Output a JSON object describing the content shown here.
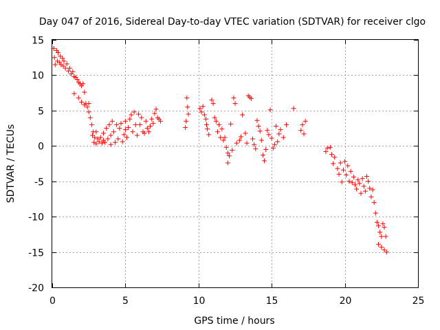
{
  "chart_data": {
    "type": "scatter",
    "title": "Day 047 of 2016, Sidereal Day-to-day VTEC variation (SDTVAR) for receiver clgo",
    "xlabel": "GPS time / hours",
    "ylabel": "SDTVAR / TECUs",
    "xlim": [
      0,
      25
    ],
    "ylim": [
      -20,
      15
    ],
    "xticks": [
      0,
      5,
      10,
      15,
      20,
      25
    ],
    "yticks": [
      -20,
      -15,
      -10,
      -5,
      0,
      5,
      10,
      15
    ],
    "grid": true,
    "marker": "+",
    "series_color": "#ff0000",
    "series": [
      {
        "name": "SDTVAR",
        "points": [
          [
            0.1,
            13.8
          ],
          [
            0.15,
            12.5
          ],
          [
            0.2,
            11.5
          ],
          [
            0.3,
            13.5
          ],
          [
            0.35,
            12.0
          ],
          [
            0.4,
            13.2
          ],
          [
            0.5,
            11.8
          ],
          [
            0.55,
            12.7
          ],
          [
            0.6,
            11.5
          ],
          [
            0.7,
            12.4
          ],
          [
            0.75,
            11.3
          ],
          [
            0.8,
            12.0
          ],
          [
            0.9,
            11.0
          ],
          [
            1.0,
            11.6
          ],
          [
            1.1,
            10.6
          ],
          [
            1.2,
            11.0
          ],
          [
            1.3,
            10.2
          ],
          [
            1.4,
            10.5
          ],
          [
            1.5,
            9.8
          ],
          [
            1.5,
            7.4
          ],
          [
            1.6,
            9.7
          ],
          [
            1.7,
            9.4
          ],
          [
            1.8,
            9.0
          ],
          [
            1.8,
            6.8
          ],
          [
            1.9,
            8.8
          ],
          [
            2.0,
            8.5
          ],
          [
            2.0,
            6.2
          ],
          [
            2.1,
            8.8
          ],
          [
            2.2,
            7.6
          ],
          [
            2.2,
            5.8
          ],
          [
            2.3,
            6.0
          ],
          [
            2.4,
            5.5
          ],
          [
            2.5,
            6.0
          ],
          [
            2.5,
            4.8
          ],
          [
            2.6,
            4.0
          ],
          [
            2.7,
            3.0
          ],
          [
            2.75,
            1.5
          ],
          [
            2.8,
            2.0
          ],
          [
            2.85,
            0.5
          ],
          [
            2.9,
            1.2
          ],
          [
            3.0,
            0.3
          ],
          [
            3.0,
            2.0
          ],
          [
            3.1,
            1.0
          ],
          [
            3.2,
            0.6
          ],
          [
            3.3,
            1.2
          ],
          [
            3.4,
            0.4
          ],
          [
            3.5,
            1.8
          ],
          [
            3.5,
            0.8
          ],
          [
            3.6,
            0.5
          ],
          [
            3.7,
            2.5
          ],
          [
            3.8,
            1.0
          ],
          [
            3.9,
            3.0
          ],
          [
            4.0,
            1.5
          ],
          [
            4.0,
            0.2
          ],
          [
            4.1,
            3.5
          ],
          [
            4.2,
            2.0
          ],
          [
            4.3,
            0.5
          ],
          [
            4.4,
            3.0
          ],
          [
            4.5,
            1.0
          ],
          [
            4.6,
            2.5
          ],
          [
            4.7,
            3.2
          ],
          [
            4.8,
            0.6
          ],
          [
            4.9,
            1.6
          ],
          [
            5.0,
            3.5
          ],
          [
            5.0,
            2.3
          ],
          [
            5.1,
            1.2
          ],
          [
            5.2,
            2.6
          ],
          [
            5.3,
            3.8
          ],
          [
            5.4,
            4.4
          ],
          [
            5.5,
            2.0
          ],
          [
            5.6,
            4.8
          ],
          [
            5.7,
            3.0
          ],
          [
            5.8,
            1.5
          ],
          [
            5.9,
            4.5
          ],
          [
            6.0,
            3.0
          ],
          [
            6.1,
            4.0
          ],
          [
            6.2,
            2.0
          ],
          [
            6.3,
            1.8
          ],
          [
            6.4,
            3.5
          ],
          [
            6.5,
            2.5
          ],
          [
            6.6,
            2.0
          ],
          [
            6.7,
            2.8
          ],
          [
            6.8,
            3.8
          ],
          [
            6.9,
            3.2
          ],
          [
            7.0,
            4.6
          ],
          [
            7.1,
            5.2
          ],
          [
            7.2,
            4.0
          ],
          [
            7.3,
            3.8
          ],
          [
            7.4,
            3.5
          ],
          [
            9.1,
            2.6
          ],
          [
            9.15,
            3.5
          ],
          [
            9.2,
            6.8
          ],
          [
            9.25,
            5.5
          ],
          [
            9.3,
            4.5
          ],
          [
            10.1,
            5.3
          ],
          [
            10.2,
            4.8
          ],
          [
            10.3,
            5.6
          ],
          [
            10.4,
            4.4
          ],
          [
            10.5,
            3.8
          ],
          [
            10.55,
            3.0
          ],
          [
            10.6,
            2.4
          ],
          [
            10.7,
            1.6
          ],
          [
            10.9,
            6.5
          ],
          [
            11.0,
            6.0
          ],
          [
            11.1,
            4.0
          ],
          [
            11.2,
            3.5
          ],
          [
            11.3,
            2.0
          ],
          [
            11.4,
            3.0
          ],
          [
            11.5,
            1.2
          ],
          [
            11.6,
            2.4
          ],
          [
            11.7,
            0.8
          ],
          [
            11.8,
            1.2
          ],
          [
            11.9,
            -0.2
          ],
          [
            12.0,
            -1.0
          ],
          [
            12.0,
            -2.4
          ],
          [
            12.1,
            -1.4
          ],
          [
            12.2,
            3.1
          ],
          [
            12.3,
            -0.6
          ],
          [
            12.4,
            6.8
          ],
          [
            12.5,
            6.0
          ],
          [
            12.6,
            0.4
          ],
          [
            12.8,
            0.8
          ],
          [
            12.9,
            1.3
          ],
          [
            13.0,
            4.4
          ],
          [
            13.2,
            1.8
          ],
          [
            13.3,
            0.4
          ],
          [
            13.4,
            7.1
          ],
          [
            13.5,
            6.9
          ],
          [
            13.6,
            6.7
          ],
          [
            13.7,
            1.0
          ],
          [
            13.8,
            0.2
          ],
          [
            13.9,
            -0.4
          ],
          [
            14.0,
            3.6
          ],
          [
            14.1,
            2.8
          ],
          [
            14.2,
            2.1
          ],
          [
            14.3,
            0.8
          ],
          [
            14.4,
            -1.3
          ],
          [
            14.5,
            -2.1
          ],
          [
            14.6,
            -0.5
          ],
          [
            14.7,
            2.2
          ],
          [
            14.8,
            1.6
          ],
          [
            14.9,
            5.1
          ],
          [
            15.0,
            1.1
          ],
          [
            15.1,
            -0.3
          ],
          [
            15.2,
            0.2
          ],
          [
            15.3,
            2.8
          ],
          [
            15.4,
            0.6
          ],
          [
            15.5,
            1.7
          ],
          [
            15.6,
            2.3
          ],
          [
            15.8,
            1.2
          ],
          [
            16.0,
            3.0
          ],
          [
            16.5,
            5.3
          ],
          [
            17.0,
            2.2
          ],
          [
            17.1,
            3.0
          ],
          [
            17.2,
            1.7
          ],
          [
            17.3,
            3.5
          ],
          [
            18.7,
            -0.8
          ],
          [
            18.8,
            -0.3
          ],
          [
            19.0,
            -0.2
          ],
          [
            19.1,
            -1.2
          ],
          [
            19.2,
            -2.5
          ],
          [
            19.3,
            -1.6
          ],
          [
            19.5,
            -3.2
          ],
          [
            19.6,
            -4.0
          ],
          [
            19.7,
            -2.4
          ],
          [
            19.8,
            -5.1
          ],
          [
            19.9,
            -3.4
          ],
          [
            20.0,
            -2.2
          ],
          [
            20.1,
            -4.1
          ],
          [
            20.2,
            -2.8
          ],
          [
            20.3,
            -5.0
          ],
          [
            20.4,
            -3.6
          ],
          [
            20.5,
            -5.2
          ],
          [
            20.6,
            -4.4
          ],
          [
            20.7,
            -5.5
          ],
          [
            20.8,
            -6.1
          ],
          [
            20.9,
            -4.8
          ],
          [
            21.0,
            -5.3
          ],
          [
            21.1,
            -6.7
          ],
          [
            21.2,
            -4.6
          ],
          [
            21.3,
            -5.7
          ],
          [
            21.4,
            -6.4
          ],
          [
            21.5,
            -4.3
          ],
          [
            21.6,
            -5.0
          ],
          [
            21.7,
            -6.0
          ],
          [
            21.8,
            -7.2
          ],
          [
            21.9,
            -6.2
          ],
          [
            22.0,
            -8.0
          ],
          [
            22.1,
            -9.5
          ],
          [
            22.2,
            -10.8
          ],
          [
            22.3,
            -11.3
          ],
          [
            22.4,
            -12.2
          ],
          [
            22.5,
            -12.8
          ],
          [
            22.6,
            -11.0
          ],
          [
            22.7,
            -11.5
          ],
          [
            22.8,
            -12.8
          ],
          [
            22.3,
            -13.9
          ],
          [
            22.5,
            -14.3
          ],
          [
            22.7,
            -14.7
          ],
          [
            22.85,
            -15.0
          ]
        ]
      }
    ]
  }
}
